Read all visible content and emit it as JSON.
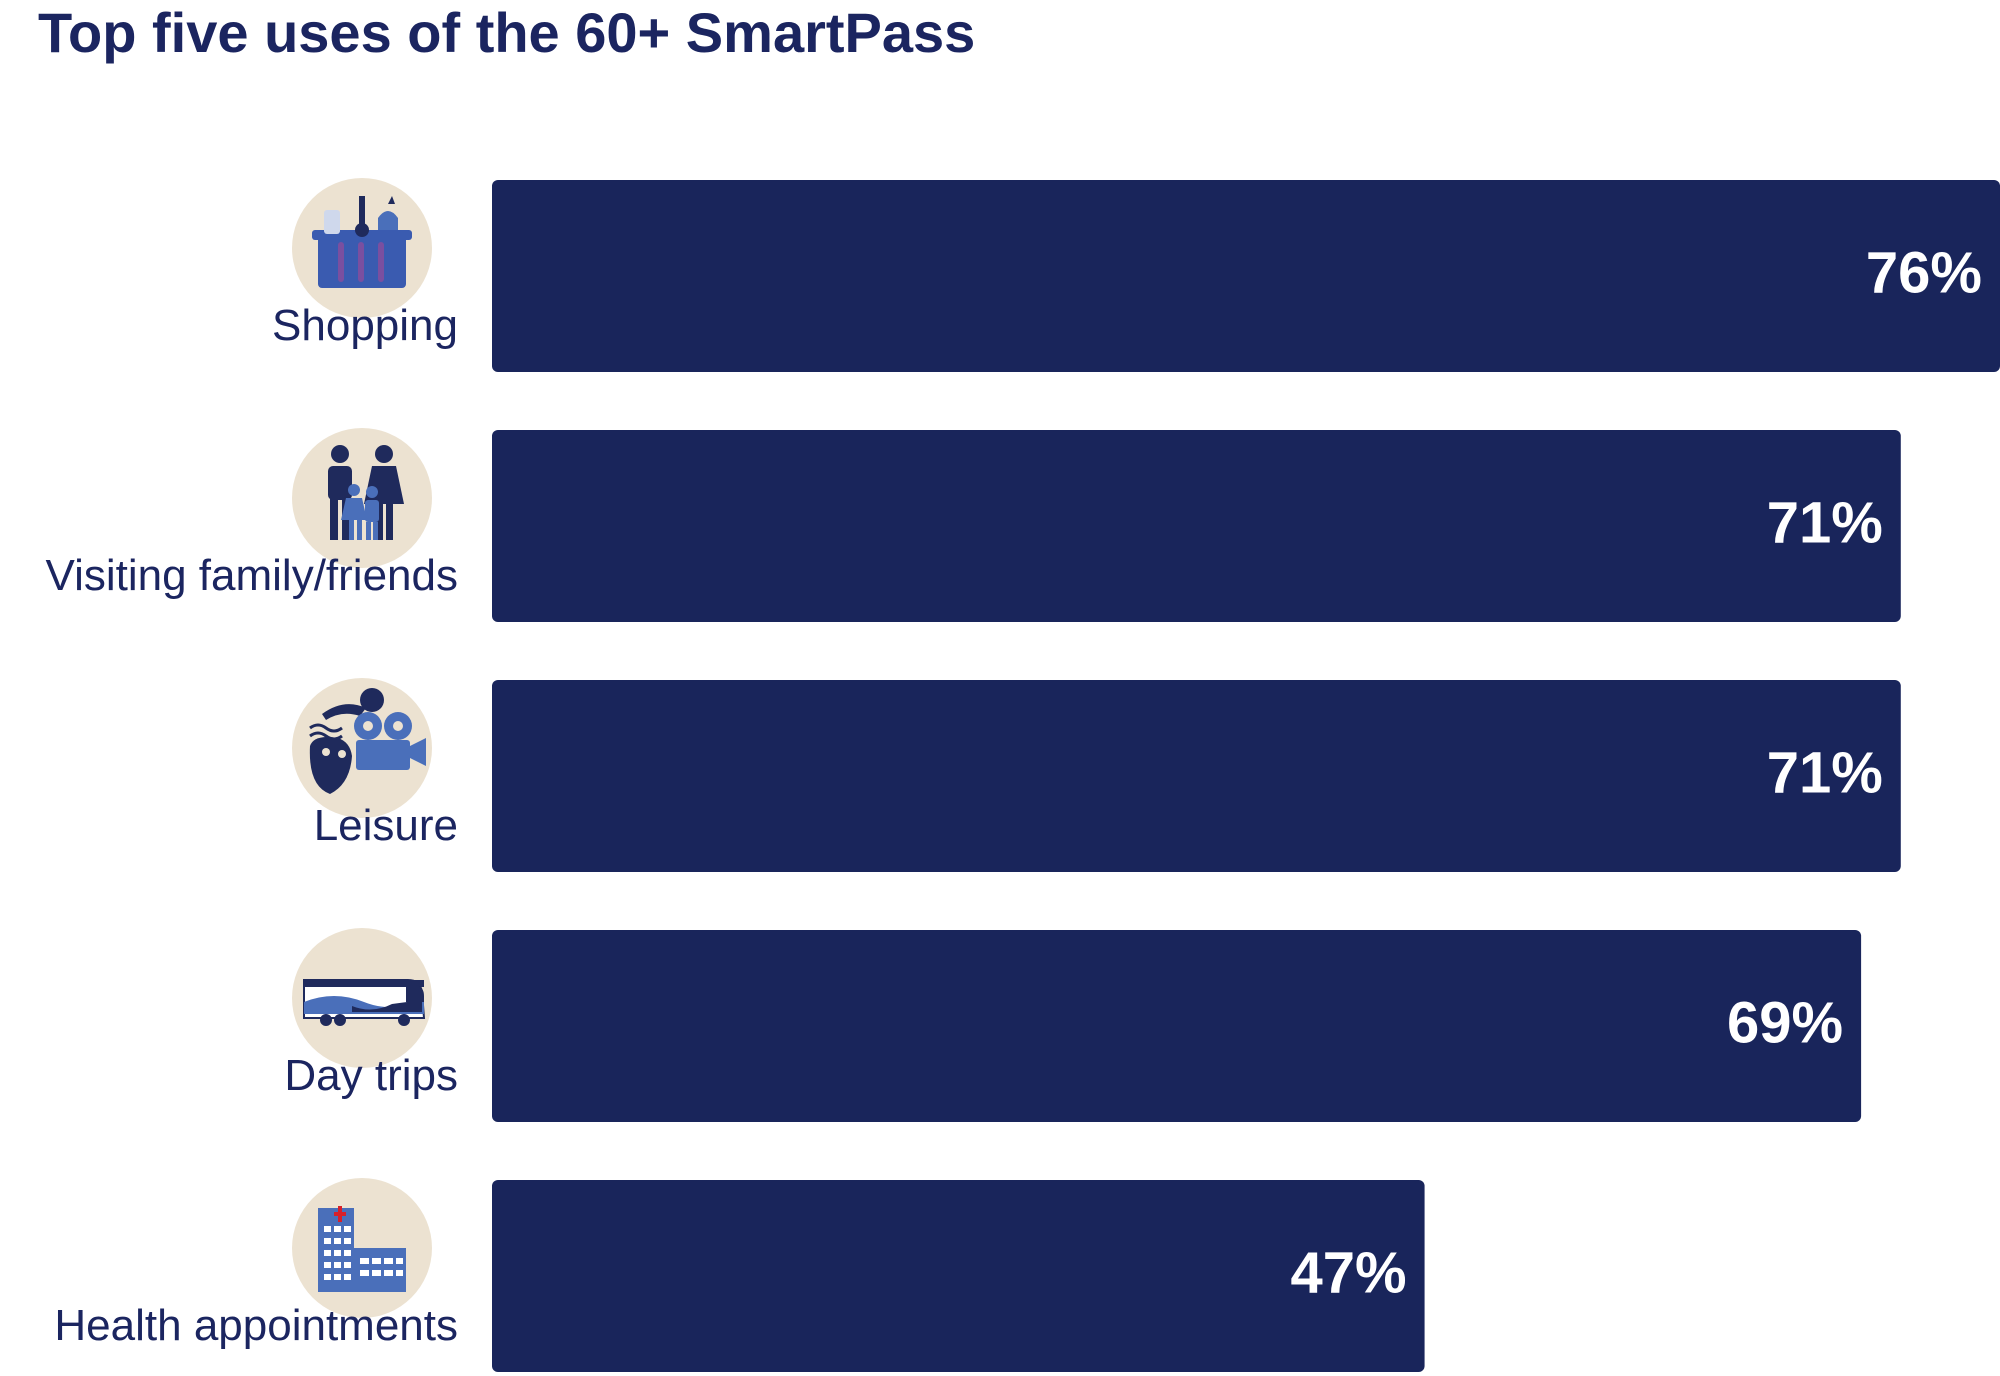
{
  "colors": {
    "bar": "#19255b",
    "bar_text": "#ffffff",
    "label_text": "#1b2560",
    "icon_circle": "#ece2d1",
    "icon_dark": "#1f2a5c",
    "icon_mid": "#4a6fba",
    "icon_accent": "#7a4fa0",
    "icon_red": "#d8202a"
  },
  "chart_data": {
    "type": "bar",
    "orientation": "horizontal",
    "title": "Top five uses of the 60+ SmartPass",
    "categories": [
      "Shopping",
      "Visiting family/friends",
      "Leisure",
      "Day trips",
      "Health appointments"
    ],
    "values": [
      76,
      71,
      71,
      69,
      47
    ],
    "value_labels": [
      "76%",
      "71%",
      "71%",
      "69%",
      "47%"
    ],
    "icons": [
      "shopping-basket-icon",
      "family-icon",
      "leisure-icon",
      "coach-bus-icon",
      "hospital-icon"
    ],
    "xlim": [
      0,
      76
    ],
    "grid": false,
    "legend": "none"
  }
}
